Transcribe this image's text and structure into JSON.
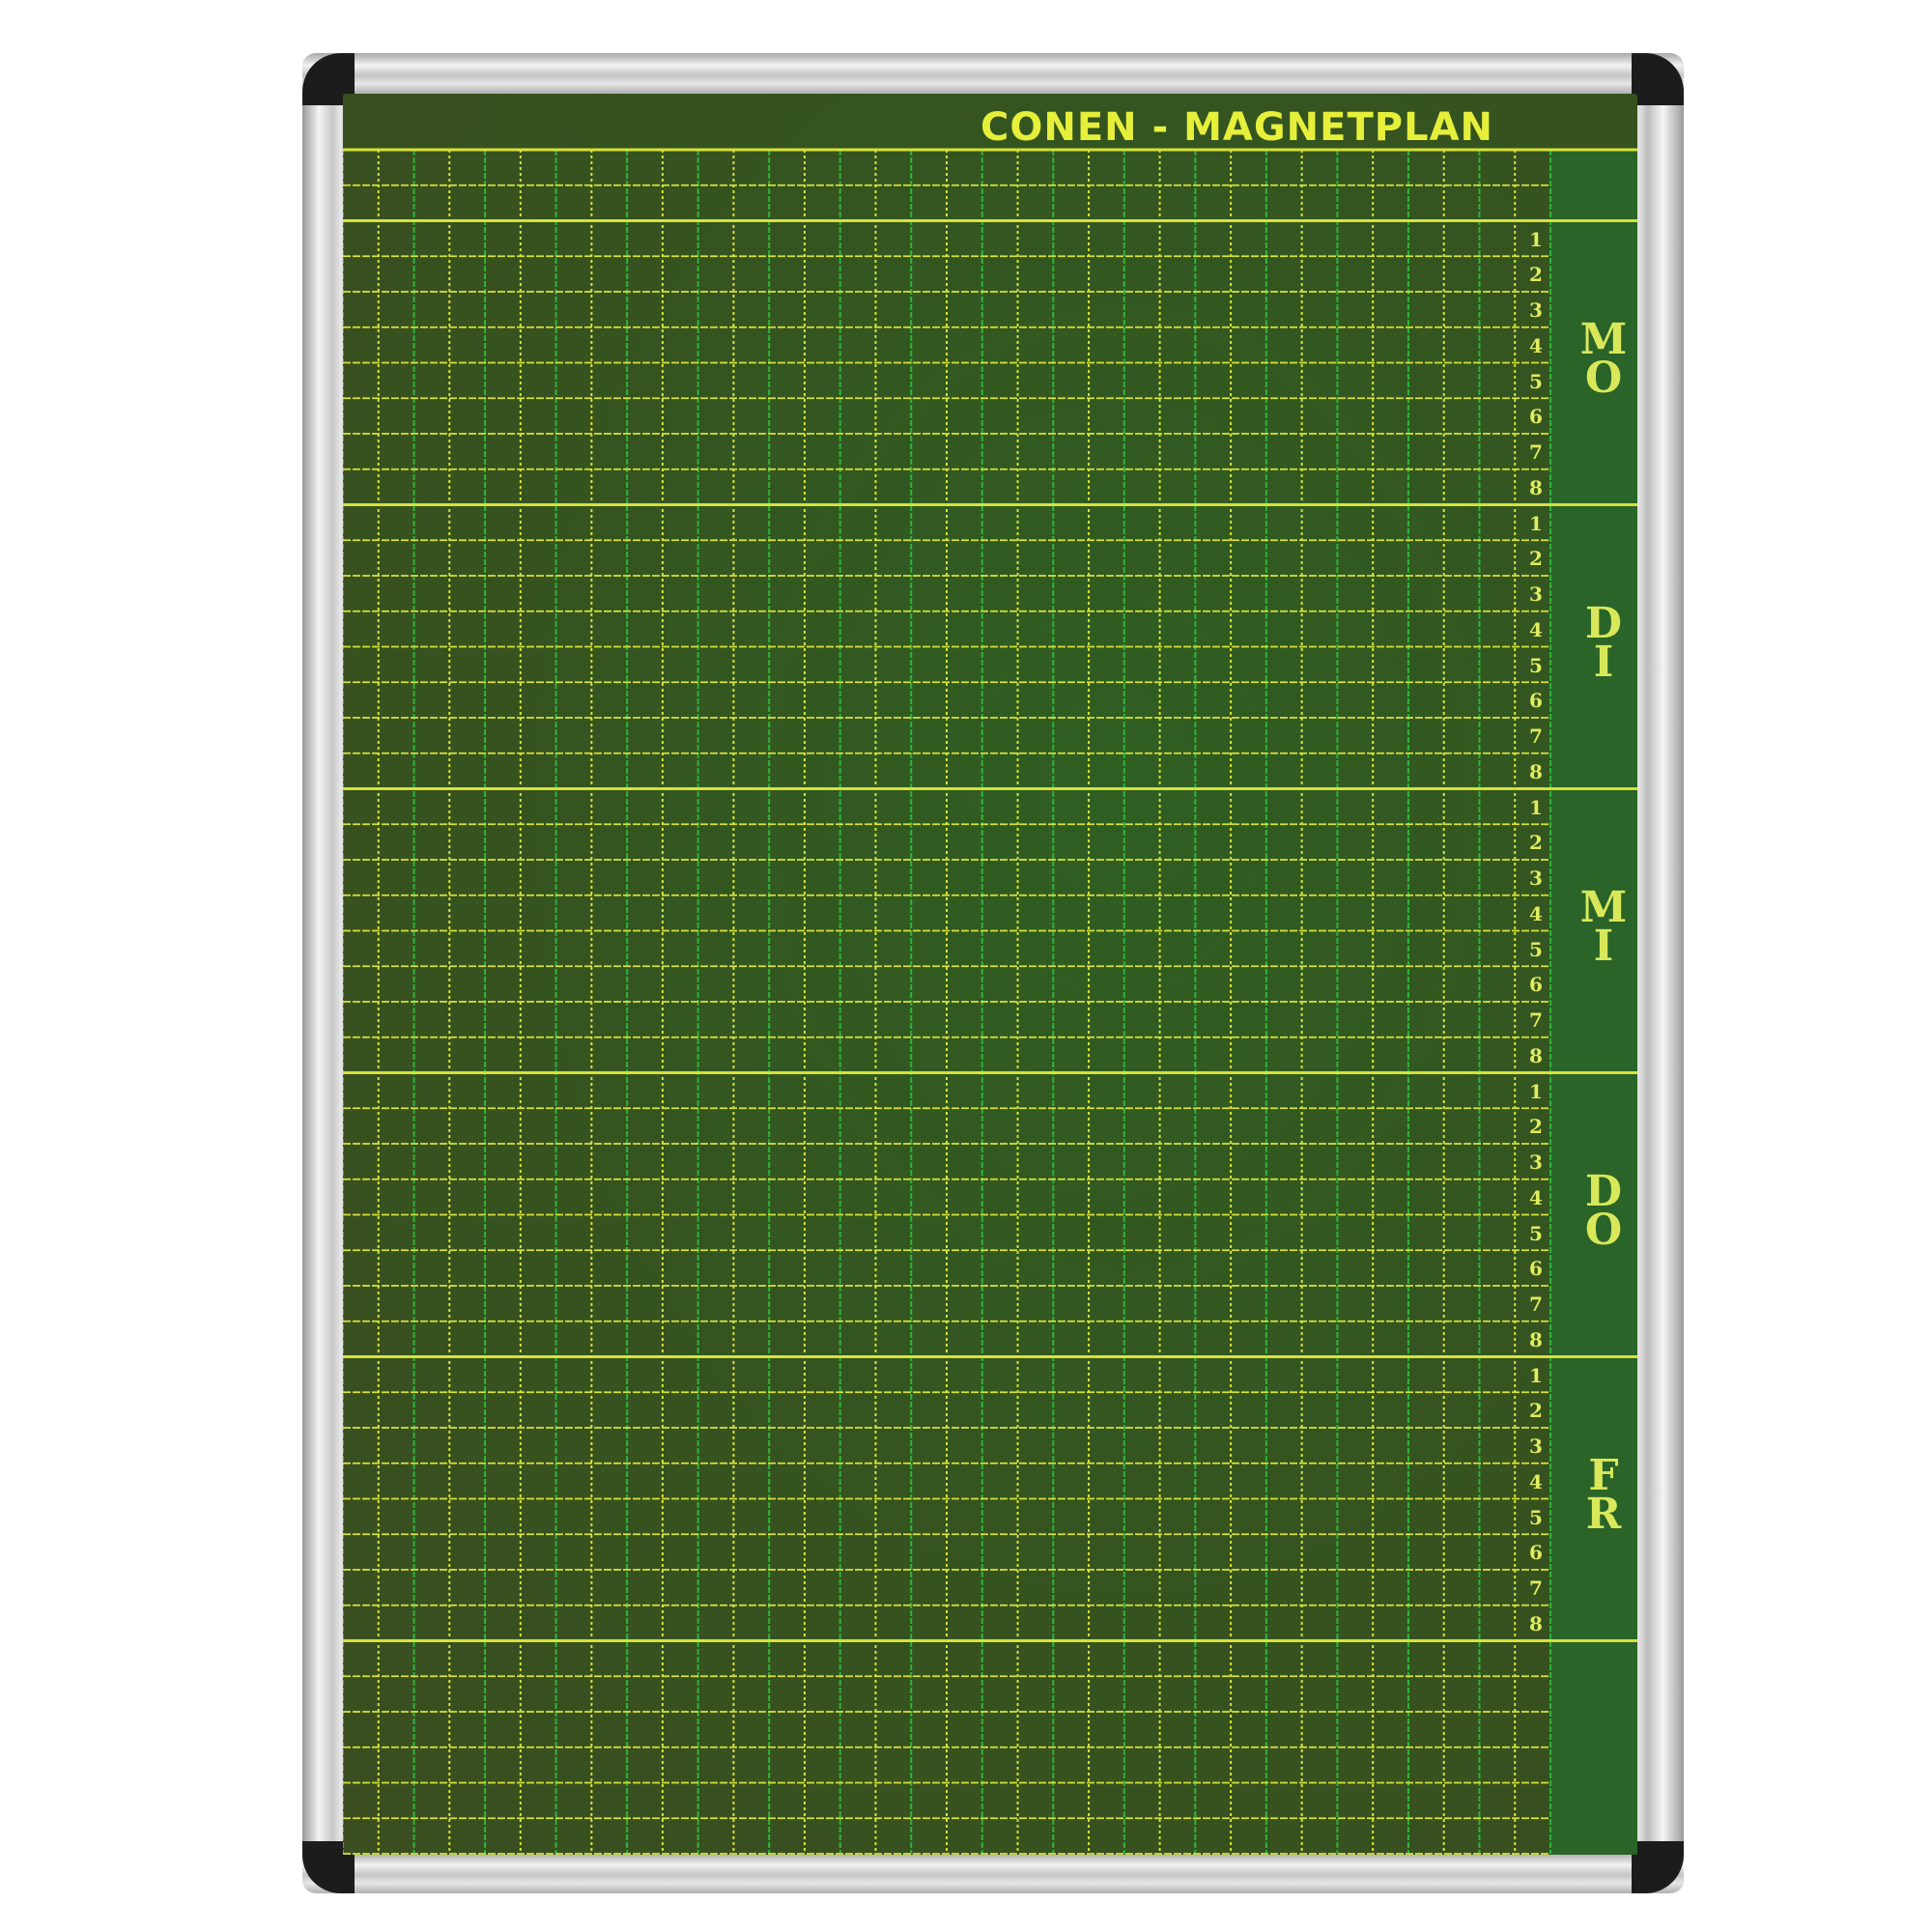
{
  "board": {
    "title": "CONEN - MAGNETPLAN",
    "days": [
      {
        "label": "MO",
        "periods": [
          "1",
          "2",
          "3",
          "4",
          "5",
          "6",
          "7",
          "8"
        ]
      },
      {
        "label": "DI",
        "periods": [
          "1",
          "2",
          "3",
          "4",
          "5",
          "6",
          "7",
          "8"
        ]
      },
      {
        "label": "MI",
        "periods": [
          "1",
          "2",
          "3",
          "4",
          "5",
          "6",
          "7",
          "8"
        ]
      },
      {
        "label": "DO",
        "periods": [
          "1",
          "2",
          "3",
          "4",
          "5",
          "6",
          "7",
          "8"
        ]
      },
      {
        "label": "FR",
        "periods": [
          "1",
          "2",
          "3",
          "4",
          "5",
          "6",
          "7",
          "8"
        ]
      }
    ],
    "colors": {
      "board": "#34541f",
      "lines": "#d6e23a",
      "vertical_lines": "#2db43a",
      "text": "#e6f03a",
      "frame": "#d8d8d8",
      "corners": "#1c1c1c"
    }
  }
}
